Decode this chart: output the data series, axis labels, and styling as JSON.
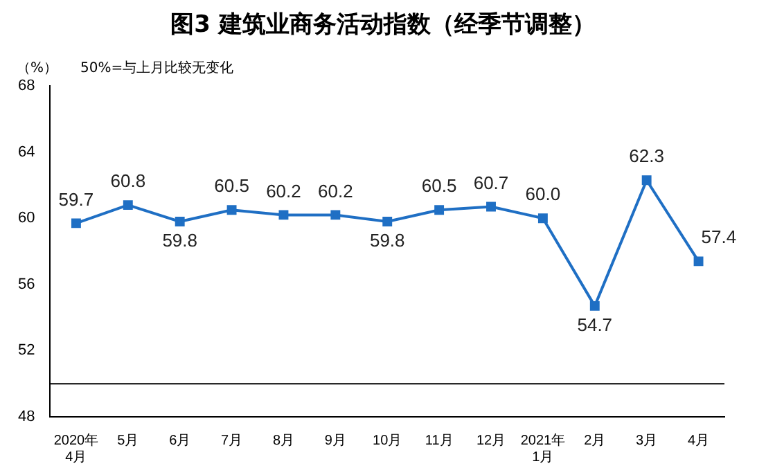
{
  "chart_data": {
    "type": "line",
    "title": "图3  建筑业商务活动指数（经季节调整）",
    "ylabel": "（%）",
    "annotations": [
      "50%=与上月比较无变化"
    ],
    "categories": [
      "2020年\n4月",
      "5月",
      "6月",
      "7月",
      "8月",
      "9月",
      "10月",
      "11月",
      "12月",
      "2021年\n1月",
      "2月",
      "3月",
      "4月"
    ],
    "series": [
      {
        "color": "#1f6fc4",
        "values": [
          59.7,
          60.8,
          59.8,
          60.5,
          60.2,
          60.2,
          59.8,
          60.5,
          60.7,
          60.0,
          54.7,
          62.3,
          57.4
        ],
        "value_labels": [
          "59.7",
          "60.8",
          "59.8",
          "60.5",
          "60.2",
          "60.2",
          "59.8",
          "60.5",
          "60.7",
          "60.0",
          "54.7",
          "62.3",
          "57.4"
        ]
      }
    ],
    "ylim": [
      48,
      68
    ],
    "yticks": [
      48,
      52,
      56,
      60,
      64,
      68
    ],
    "grid": false,
    "legend": false,
    "marker": "square",
    "line_style": "solid",
    "ref_lines": [
      {
        "axis": "y",
        "value": 50,
        "color": "#000000"
      }
    ]
  }
}
